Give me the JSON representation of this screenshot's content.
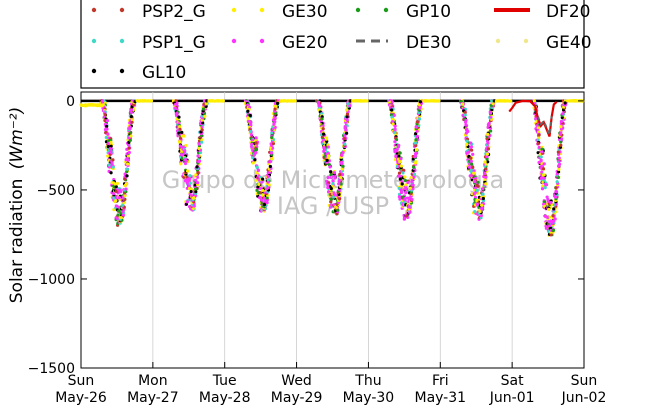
{
  "chart_data": {
    "type": "scatter",
    "ylabel": "Solar radiation",
    "ylabel_unit": "(Wm⁻²)",
    "ylim": [
      -1500,
      50
    ],
    "yticks": [
      0,
      -500,
      -1000,
      -1500
    ],
    "ytick_labels": [
      "0",
      "−500",
      "−1000",
      "−1500"
    ],
    "xlim": [
      0,
      7
    ],
    "xticks": [
      {
        "day": "Sun",
        "date": "May-26"
      },
      {
        "day": "Mon",
        "date": "May-27"
      },
      {
        "day": "Tue",
        "date": "May-28"
      },
      {
        "day": "Wed",
        "date": "May-29"
      },
      {
        "day": "Thu",
        "date": "May-30"
      },
      {
        "day": "Fri",
        "date": "May-31"
      },
      {
        "day": "Sat",
        "date": "Jun-01"
      },
      {
        "day": "Sun",
        "date": "Jun-02"
      }
    ],
    "grid": "vertical",
    "legend_position": "top",
    "daily_peak_minimum": [
      -700,
      -620,
      -620,
      -640,
      -660,
      -670,
      -760
    ],
    "series": [
      {
        "name": "PSP2_G",
        "color": "#c0392b",
        "style": "dots"
      },
      {
        "name": "GE30",
        "color": "#ffee00",
        "style": "dots"
      },
      {
        "name": "GP10",
        "color": "#1a9b1a",
        "style": "dots"
      },
      {
        "name": "DF20",
        "color": "#e00000",
        "style": "line"
      },
      {
        "name": "PSP1_G",
        "color": "#40d9c8",
        "style": "dots"
      },
      {
        "name": "GE20",
        "color": "#ff33ff",
        "style": "dots"
      },
      {
        "name": "DE30",
        "color": "#666666",
        "style": "dash"
      },
      {
        "name": "GE40",
        "color": "#f0e68c",
        "style": "dots"
      },
      {
        "name": "GL10",
        "color": "#000000",
        "style": "dots"
      }
    ],
    "watermark": [
      "Grupo de Micrometeorologia",
      "IAG / USP"
    ]
  }
}
